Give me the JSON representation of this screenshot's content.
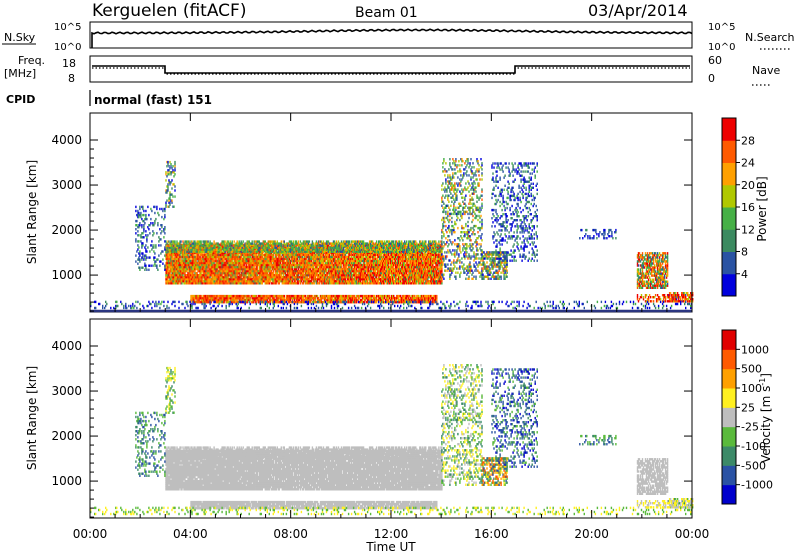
{
  "header": {
    "station": "Kerguelen (fitACF)",
    "beam": "Beam 01",
    "date": "03/Apr/2014"
  },
  "top_panels": {
    "nsky_label": "N.Sky",
    "nsearch_label": "N.Search",
    "nsky_ticks": [
      "10^5",
      "10^0"
    ],
    "nsearch_ticks": [
      "10^5",
      "10^0"
    ],
    "freq_label_line1": "Freq.",
    "freq_label_line2": "[MHz]",
    "freq_ticks": [
      "18",
      "8"
    ],
    "nave_label": "Nave",
    "nave_ticks": [
      "60",
      "0"
    ],
    "cpid_label": "CPID",
    "cpid_value": "normal (fast) 151"
  },
  "colors": {
    "power": [
      "#0000dd",
      "#2a53a3",
      "#3b8a60",
      "#46b046",
      "#b0c800",
      "#ffa000",
      "#ff5a00",
      "#ee0000"
    ],
    "velocity": [
      "#0000cc",
      "#2a52a4",
      "#3c8a68",
      "#5aba3c",
      "#bebebe",
      "#fff020",
      "#ffa000",
      "#ff5a00",
      "#e00000"
    ]
  },
  "chart_data": [
    {
      "type": "heatmap",
      "title": "",
      "xlabel": "",
      "ylabel": "Slant Range [km]",
      "xlim": [
        0,
        24
      ],
      "ylim": [
        180,
        4600
      ],
      "x_ticks": [
        "00:00",
        "04:00",
        "08:00",
        "12:00",
        "16:00",
        "20:00",
        "00:00"
      ],
      "y_ticks": [
        "1000",
        "2000",
        "3000",
        "4000"
      ],
      "colorbar": {
        "label": "Power [dB]",
        "ticks": [
          "4",
          "8",
          "12",
          "16",
          "20",
          "24",
          "28"
        ]
      }
    },
    {
      "type": "heatmap",
      "title": "",
      "xlabel": "Time UT",
      "ylabel": "Slant Range [km]",
      "xlim": [
        0,
        24
      ],
      "ylim": [
        180,
        4600
      ],
      "x_ticks": [
        "00:00",
        "04:00",
        "08:00",
        "12:00",
        "16:00",
        "20:00",
        "00:00"
      ],
      "y_ticks": [
        "1000",
        "2000",
        "3000",
        "4000"
      ],
      "colorbar": {
        "label": "Velocity [m s-1]",
        "ticks": [
          "1000",
          "500",
          "100",
          "25",
          "-25",
          "-100",
          "-500",
          "-1000"
        ]
      }
    }
  ]
}
